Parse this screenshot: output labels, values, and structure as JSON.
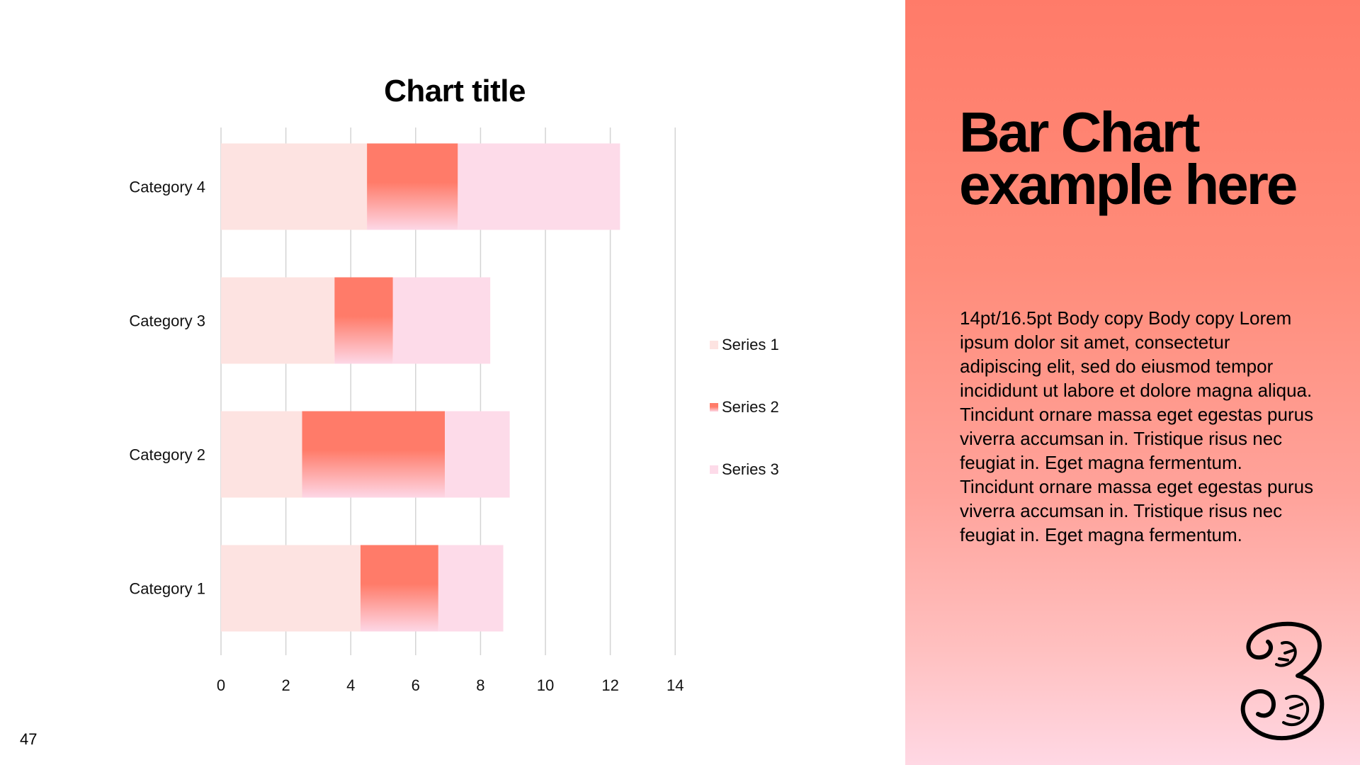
{
  "slide": {
    "page_number": "47"
  },
  "right_panel": {
    "headline": "Bar Chart example here",
    "body": "14pt/16.5pt Body copy Body copy Lorem ipsum dolor sit amet, consectetur adipiscing elit, sed do eiusmod tempor incididunt ut labore et dolore magna aliqua. Tincidunt ornare massa eget egestas purus viverra accumsan in. Tristique risus nec feugiat in. Eget magna fermentum. Tincidunt ornare massa eget egestas purus viverra accumsan in. Tristique risus nec feugiat in. Eget magna fermentum.",
    "logo_icon": "three-logo-icon"
  },
  "colors": {
    "panel_top": "#ff7b69",
    "panel_bottom": "#ffd8e4",
    "series_1": "#fde3e1",
    "series_2_top": "#ff7b69",
    "series_2_bottom": "#fdd7e6",
    "series_3": "#fddbe9",
    "gridline": "#d4d4d4"
  },
  "chart_data": {
    "type": "bar",
    "orientation": "horizontal",
    "stacked": true,
    "title": "Chart title",
    "categories": [
      "Category 1",
      "Category 2",
      "Category 3",
      "Category 4"
    ],
    "series": [
      {
        "name": "Series 1",
        "values": [
          4.3,
          2.5,
          3.5,
          4.5
        ]
      },
      {
        "name": "Series 2",
        "values": [
          2.4,
          4.4,
          1.8,
          2.8
        ]
      },
      {
        "name": "Series 3",
        "values": [
          2.0,
          2.0,
          3.0,
          5.0
        ]
      }
    ],
    "x_ticks": [
      "0",
      "2",
      "4",
      "6",
      "8",
      "10",
      "12",
      "14"
    ],
    "xlim": [
      0,
      14
    ],
    "grid": true,
    "legend_position": "right"
  }
}
